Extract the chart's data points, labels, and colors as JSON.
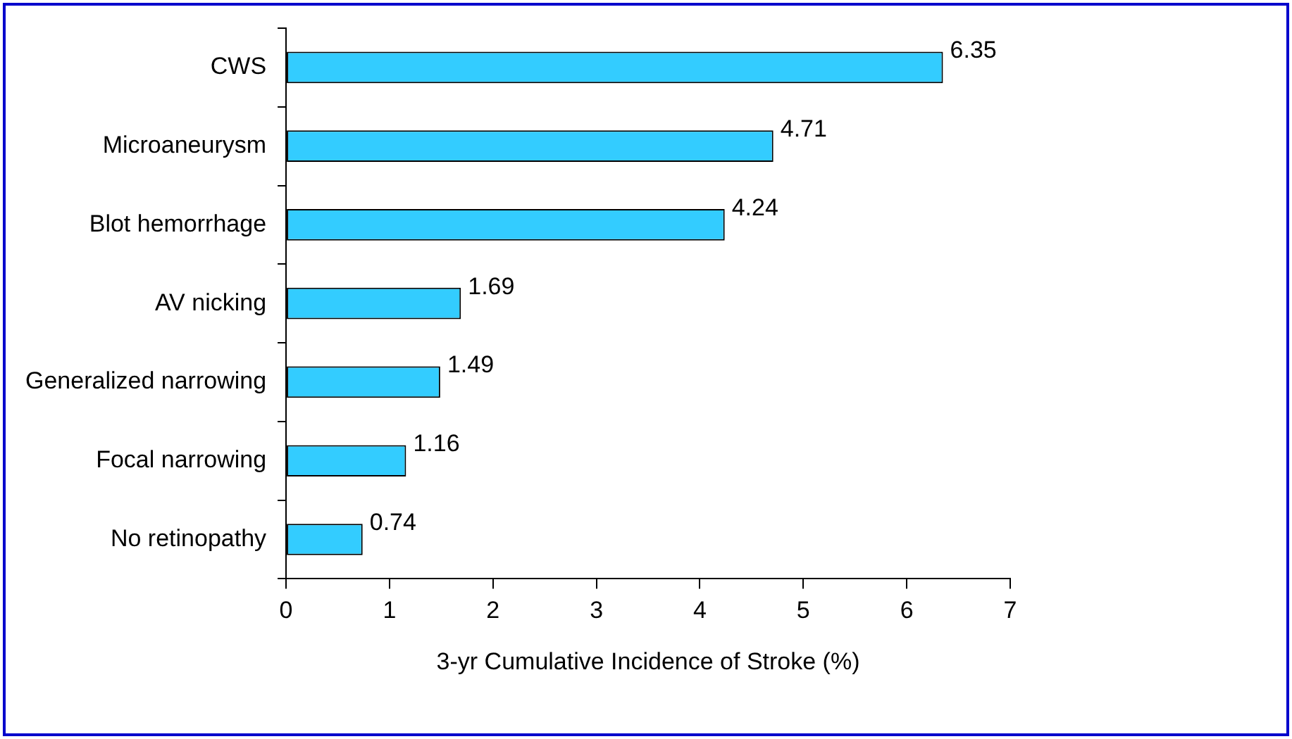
{
  "chart_data": {
    "type": "bar",
    "orientation": "horizontal",
    "xlabel": "3-yr Cumulative Incidence of Stroke (%)",
    "categories": [
      "CWS",
      "Microaneurysm",
      "Blot hemorrhage",
      "AV nicking",
      "Generalized narrowing",
      "Focal narrowing",
      "No retinopathy"
    ],
    "values": [
      6.35,
      4.71,
      4.24,
      1.69,
      1.49,
      1.16,
      0.74
    ],
    "color": "#33ccff",
    "xlim": [
      0,
      7
    ],
    "xticks": [
      0,
      1,
      2,
      3,
      4,
      5,
      6,
      7
    ],
    "grid": false,
    "legend": false,
    "data_labels": true
  }
}
